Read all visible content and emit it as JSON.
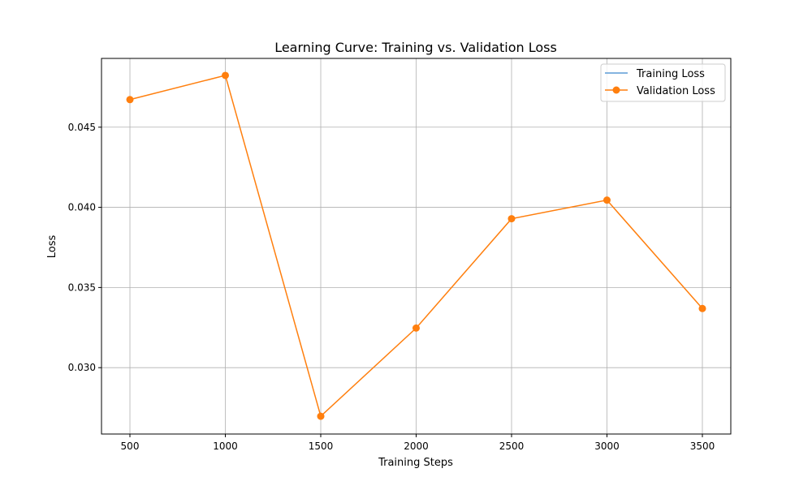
{
  "chart_data": {
    "type": "line",
    "title": "Learning Curve: Training vs. Validation Loss",
    "xlabel": "Training Steps",
    "ylabel": "Loss",
    "xlim": [
      351,
      3649
    ],
    "ylim": [
      0.02586,
      0.04929
    ],
    "xticks": [
      500,
      1000,
      1500,
      2000,
      2500,
      3000,
      3500
    ],
    "yticks": [
      0.03,
      0.035,
      0.04,
      0.045
    ],
    "ytick_labels": [
      "0.030",
      "0.035",
      "0.040",
      "0.045"
    ],
    "grid": true,
    "legend_position": "top-right",
    "series": [
      {
        "name": "Training Loss",
        "color": "#5b9bd5",
        "marker": "none",
        "x": [],
        "values": []
      },
      {
        "name": "Validation Loss",
        "color": "#ff7f0e",
        "marker": "circle",
        "x": [
          500,
          1000,
          1500,
          2000,
          2500,
          3000,
          3500
        ],
        "values": [
          0.04672,
          0.04823,
          0.02697,
          0.03247,
          0.03929,
          0.04045,
          0.03369
        ]
      }
    ]
  }
}
